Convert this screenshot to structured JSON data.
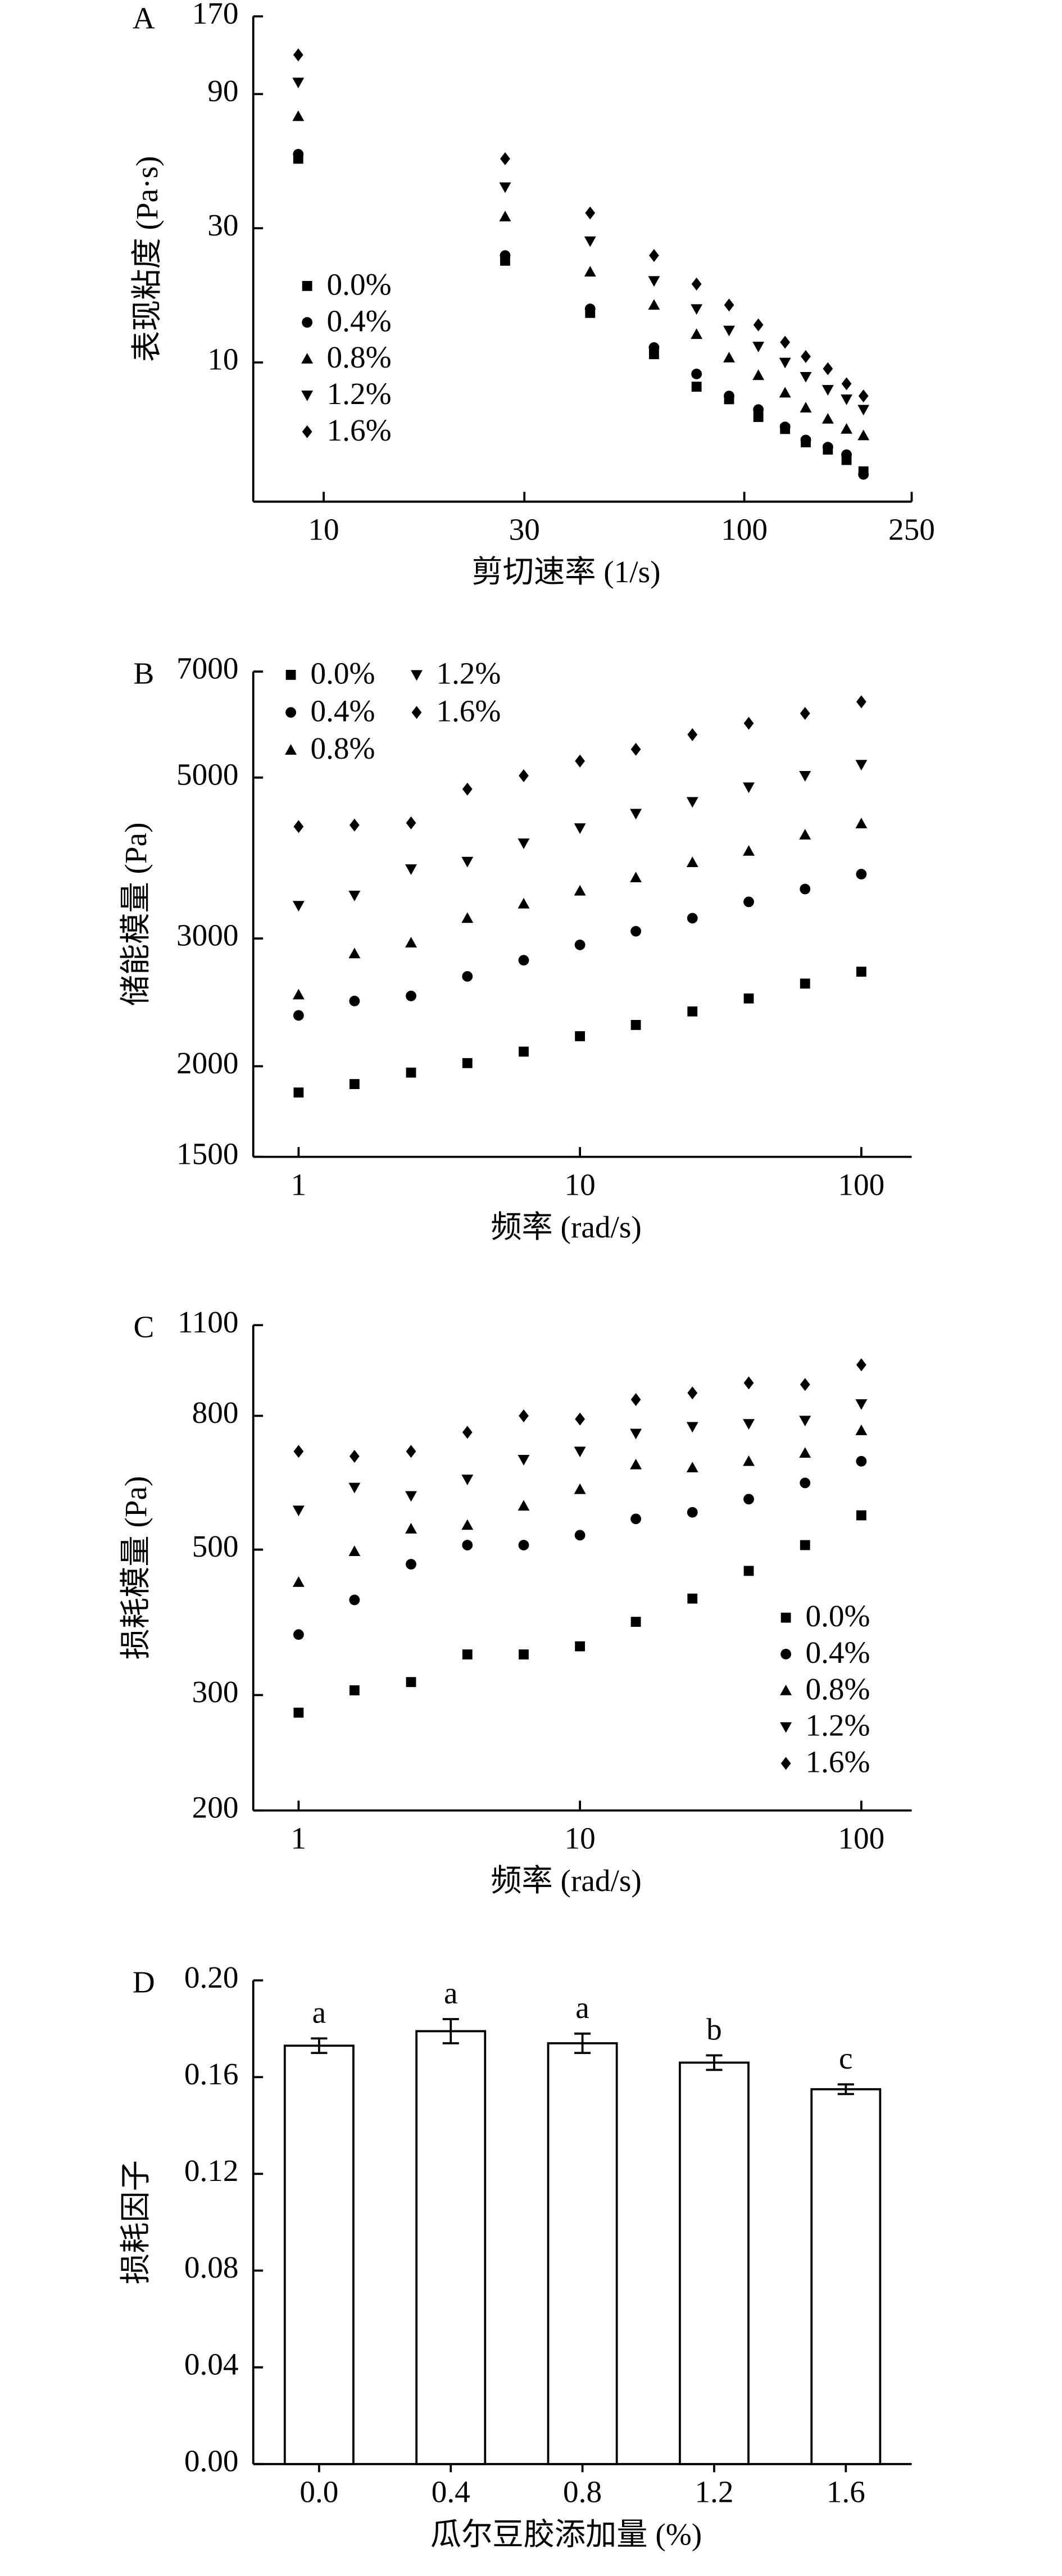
{
  "chart_data": [
    {
      "type": "scatter",
      "panel": "A",
      "x_label": "剪切速率 (1/s)",
      "y_label": "表现粘度 (Pa·s)",
      "log_x": true,
      "log_y": true,
      "legend": "upper left",
      "x": [
        8.7,
        27,
        43,
        61,
        77,
        92,
        108,
        125,
        140,
        158,
        175,
        192
      ],
      "xlim": [
        6.8,
        250
      ],
      "xticks": [
        10,
        30,
        100,
        250
      ],
      "ylim": [
        3.2,
        170
      ],
      "yticks": [
        10,
        30,
        90,
        170
      ],
      "series": [
        {
          "name": "0.0%",
          "marker": "square",
          "color": "#000000",
          "values": [
            53,
            23,
            15,
            10.7,
            8.2,
            7.4,
            6.4,
            5.8,
            5.2,
            4.9,
            4.5,
            4.1
          ]
        },
        {
          "name": "0.4%",
          "marker": "circle",
          "color": "#000000",
          "values": [
            55,
            24,
            15.5,
            11.3,
            9.1,
            7.6,
            6.8,
            5.9,
            5.3,
            5.0,
            4.7,
            4.0
          ]
        },
        {
          "name": "0.8%",
          "marker": "triangle",
          "color": "#000000",
          "values": [
            75,
            33,
            21,
            16,
            12.6,
            10.4,
            9.0,
            7.8,
            6.9,
            6.3,
            5.8,
            5.5
          ]
        },
        {
          "name": "1.2%",
          "marker": "triangle-down",
          "color": "#000000",
          "values": [
            99,
            42,
            27,
            19.5,
            15.5,
            13,
            11.4,
            10,
            8.9,
            8.0,
            7.4,
            6.8
          ]
        },
        {
          "name": "1.6%",
          "marker": "diamond",
          "color": "#000000",
          "values": [
            124,
            53,
            34,
            24,
            19,
            16,
            13.6,
            11.8,
            10.5,
            9.5,
            8.4,
            7.6
          ]
        }
      ]
    },
    {
      "type": "scatter",
      "panel": "B",
      "x_label": "频率 (rad/s)",
      "y_label": "储能模量 (Pa)",
      "log_x": true,
      "log_y": true,
      "legend": "upper left",
      "x": [
        1,
        1.58,
        2.51,
        3.98,
        6.31,
        10,
        15.8,
        25.1,
        39.8,
        63.1,
        100
      ],
      "xlim": [
        0.69,
        151
      ],
      "xticks": [
        1,
        10,
        100
      ],
      "ylim": [
        1500,
        7000
      ],
      "yticks": [
        1500,
        2000,
        3000,
        5000,
        7000
      ],
      "series": [
        {
          "name": "0.0%",
          "marker": "square",
          "color": "#000000",
          "values": [
            1840,
            1890,
            1960,
            2020,
            2095,
            2200,
            2280,
            2380,
            2480,
            2600,
            2700
          ]
        },
        {
          "name": "0.4%",
          "marker": "circle",
          "color": "#000000",
          "values": [
            2350,
            2460,
            2500,
            2660,
            2800,
            2940,
            3070,
            3200,
            3370,
            3510,
            3680
          ]
        },
        {
          "name": "0.8%",
          "marker": "triangle",
          "color": "#000000",
          "values": [
            2510,
            2860,
            2960,
            3200,
            3350,
            3490,
            3640,
            3820,
            3960,
            4170,
            4320
          ]
        },
        {
          "name": "1.2%",
          "marker": "triangle-down",
          "color": "#000000",
          "values": [
            3330,
            3440,
            3740,
            3830,
            4060,
            4260,
            4460,
            4630,
            4850,
            5030,
            5210
          ]
        },
        {
          "name": "1.6%",
          "marker": "diamond",
          "color": "#000000",
          "values": [
            4280,
            4300,
            4330,
            4820,
            5030,
            5270,
            5470,
            5730,
            5940,
            6130,
            6360
          ]
        }
      ]
    },
    {
      "type": "scatter",
      "panel": "C",
      "x_label": "频率 (rad/s)",
      "y_label": "损耗模量 (Pa)",
      "log_x": true,
      "log_y": true,
      "legend": "lower right",
      "x": [
        1,
        1.58,
        2.51,
        3.98,
        6.31,
        10,
        15.8,
        25.1,
        39.8,
        63.1,
        100
      ],
      "xlim": [
        0.69,
        151
      ],
      "xticks": [
        1,
        10,
        100
      ],
      "ylim": [
        200,
        1100
      ],
      "yticks": [
        200,
        300,
        500,
        800,
        1100
      ],
      "series": [
        {
          "name": "0.0%",
          "marker": "square",
          "color": "#000000",
          "values": [
            282,
            305,
            314,
            346,
            346,
            356,
            388,
            421,
            464,
            508,
            564
          ]
        },
        {
          "name": "0.4%",
          "marker": "circle",
          "color": "#000000",
          "values": [
            371,
            419,
            475,
            508,
            508,
            526,
            557,
            570,
            597,
            632,
            682
          ]
        },
        {
          "name": "0.8%",
          "marker": "triangle",
          "color": "#000000",
          "values": [
            446,
            497,
            538,
            545,
            583,
            618,
            674,
            667,
            682,
            702,
            760
          ]
        },
        {
          "name": "1.2%",
          "marker": "triangle-down",
          "color": "#000000",
          "values": [
            574,
            622,
            604,
            640,
            686,
            706,
            752,
            770,
            778,
            787,
            834
          ]
        },
        {
          "name": "1.6%",
          "marker": "diamond",
          "color": "#000000",
          "values": [
            706,
            694,
            706,
            755,
            800,
            791,
            847,
            867,
            898,
            893,
            957
          ]
        }
      ]
    },
    {
      "type": "bar",
      "panel": "D",
      "x_label": "瓜尔豆胶添加量 (%)",
      "y_label": "损耗因子",
      "categories": [
        "0.0",
        "0.4",
        "0.8",
        "1.2",
        "1.6"
      ],
      "values": [
        0.173,
        0.179,
        0.174,
        0.166,
        0.155
      ],
      "errors": [
        0.003,
        0.005,
        0.004,
        0.003,
        0.002
      ],
      "annotations": [
        "a",
        "a",
        "a",
        "b",
        "c"
      ],
      "color": "#ffffff",
      "ylim": [
        0,
        0.2
      ],
      "yticks": [
        {
          "value": 0,
          "label": "0.00"
        },
        {
          "value": 0.04,
          "label": "0.04"
        },
        {
          "value": 0.08,
          "label": "0.08"
        },
        {
          "value": 0.12,
          "label": "0.12"
        },
        {
          "value": 0.16,
          "label": "0.16"
        },
        {
          "value": 0.2,
          "label": "0.20"
        }
      ]
    }
  ]
}
